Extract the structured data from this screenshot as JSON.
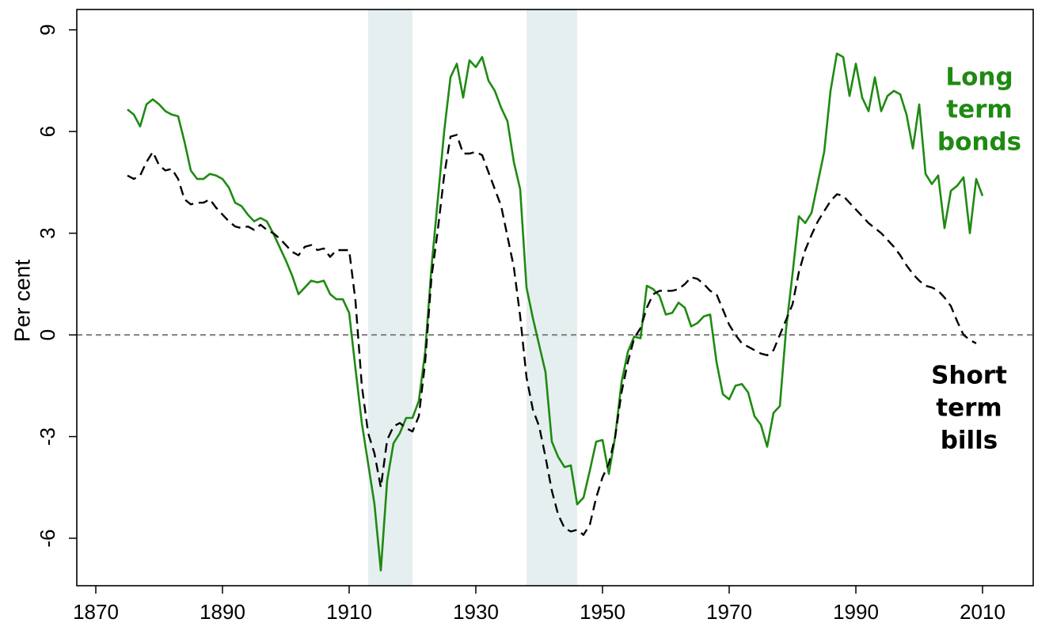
{
  "chart_data": {
    "type": "line",
    "title": "",
    "xlabel": "",
    "ylabel": "Per cent",
    "xlim": [
      1867,
      2018
    ],
    "ylim": [
      -7.4,
      9.6
    ],
    "xticks": [
      1870,
      1890,
      1910,
      1930,
      1950,
      1970,
      1990,
      2010
    ],
    "yticks": [
      -6,
      -3,
      0,
      3,
      6,
      9
    ],
    "ytick_labels": [
      "-6",
      "-3",
      "0",
      "3",
      "6",
      "9"
    ],
    "reference_line": {
      "y": 0,
      "color": "#8a8a8a",
      "style": "dashed"
    },
    "shaded_periods": [
      {
        "x": [
          1913,
          1920
        ],
        "color": "#e6eff0"
      },
      {
        "x": [
          1938,
          1946
        ],
        "color": "#e6eff0"
      }
    ],
    "series": [
      {
        "name_lines": [
          "Long",
          "term",
          "bonds"
        ],
        "color": "#1f8a12",
        "style": "solid",
        "x": [
          1875,
          1876,
          1877,
          1878,
          1879,
          1880,
          1881,
          1882,
          1883,
          1884,
          1885,
          1886,
          1887,
          1888,
          1889,
          1890,
          1891,
          1892,
          1893,
          1894,
          1895,
          1896,
          1897,
          1898,
          1899,
          1900,
          1901,
          1902,
          1903,
          1904,
          1905,
          1906,
          1907,
          1908,
          1909,
          1910,
          1911,
          1912,
          1913,
          1914,
          1915,
          1916,
          1917,
          1918,
          1919,
          1920,
          1921,
          1922,
          1923,
          1924,
          1925,
          1926,
          1927,
          1928,
          1929,
          1930,
          1931,
          1932,
          1933,
          1934,
          1935,
          1936,
          1937,
          1938,
          1939,
          1940,
          1941,
          1942,
          1943,
          1944,
          1945,
          1946,
          1947,
          1948,
          1949,
          1950,
          1951,
          1952,
          1953,
          1954,
          1955,
          1956,
          1957,
          1958,
          1959,
          1960,
          1961,
          1962,
          1963,
          1964,
          1965,
          1966,
          1967,
          1968,
          1969,
          1970,
          1971,
          1972,
          1973,
          1974,
          1975,
          1976,
          1977,
          1978,
          1979,
          1980,
          1981,
          1982,
          1983,
          1984,
          1985,
          1986,
          1987,
          1988,
          1989,
          1990,
          1991,
          1992,
          1993,
          1994,
          1995,
          1996,
          1997,
          1998,
          1999,
          2000,
          2001,
          2002,
          2003,
          2004,
          2005,
          2006,
          2007,
          2008,
          2009,
          2010
        ],
        "y": [
          6.65,
          6.5,
          6.15,
          6.8,
          6.95,
          6.8,
          6.6,
          6.5,
          6.45,
          5.7,
          4.85,
          4.6,
          4.6,
          4.75,
          4.7,
          4.6,
          4.35,
          3.9,
          3.8,
          3.55,
          3.35,
          3.45,
          3.35,
          3.0,
          2.6,
          2.2,
          1.75,
          1.2,
          1.4,
          1.6,
          1.55,
          1.6,
          1.2,
          1.05,
          1.05,
          0.65,
          -1.0,
          -2.6,
          -3.8,
          -5.0,
          -6.95,
          -4.3,
          -3.2,
          -2.9,
          -2.45,
          -2.45,
          -1.95,
          -0.5,
          2.0,
          4.0,
          6.0,
          7.6,
          8.0,
          7.0,
          8.1,
          7.9,
          8.2,
          7.5,
          7.2,
          6.7,
          6.3,
          5.1,
          4.3,
          1.4,
          0.5,
          -0.3,
          -1.1,
          -3.15,
          -3.6,
          -3.9,
          -3.85,
          -5.0,
          -4.8,
          -4.0,
          -3.15,
          -3.1,
          -4.1,
          -3.0,
          -1.4,
          -0.5,
          -0.05,
          -0.1,
          1.45,
          1.35,
          1.15,
          0.6,
          0.65,
          0.95,
          0.8,
          0.25,
          0.35,
          0.55,
          0.6,
          -0.8,
          -1.75,
          -1.9,
          -1.5,
          -1.45,
          -1.7,
          -2.4,
          -2.65,
          -3.3,
          -2.3,
          -2.1,
          0.2,
          1.8,
          3.5,
          3.3,
          3.6,
          4.5,
          5.4,
          7.2,
          8.3,
          8.2,
          7.05,
          8.0,
          7.0,
          6.6,
          7.6,
          6.6,
          7.05,
          7.2,
          7.1,
          6.5,
          5.5,
          6.8,
          4.75,
          4.45,
          4.7,
          3.15,
          4.25,
          4.4,
          4.65,
          3.0,
          4.6,
          4.1
        ]
      },
      {
        "name_lines": [
          "Short",
          "term",
          "bills"
        ],
        "color": "#000000",
        "style": "dashed",
        "x": [
          1875,
          1876,
          1877,
          1878,
          1879,
          1880,
          1881,
          1882,
          1883,
          1884,
          1885,
          1886,
          1887,
          1888,
          1889,
          1890,
          1891,
          1892,
          1893,
          1894,
          1895,
          1896,
          1897,
          1898,
          1899,
          1900,
          1901,
          1902,
          1903,
          1904,
          1905,
          1906,
          1907,
          1908,
          1909,
          1910,
          1911,
          1912,
          1913,
          1914,
          1915,
          1916,
          1917,
          1918,
          1919,
          1920,
          1921,
          1922,
          1923,
          1924,
          1925,
          1926,
          1927,
          1928,
          1929,
          1930,
          1931,
          1932,
          1933,
          1934,
          1935,
          1936,
          1937,
          1938,
          1939,
          1940,
          1941,
          1942,
          1943,
          1944,
          1945,
          1946,
          1947,
          1948,
          1949,
          1950,
          1951,
          1952,
          1953,
          1954,
          1955,
          1956,
          1957,
          1958,
          1959,
          1960,
          1961,
          1962,
          1963,
          1964,
          1965,
          1966,
          1967,
          1968,
          1969,
          1970,
          1971,
          1972,
          1973,
          1974,
          1975,
          1976,
          1977,
          1978,
          1979,
          1980,
          1981,
          1982,
          1983,
          1984,
          1985,
          1986,
          1987,
          1988,
          1989,
          1990,
          1991,
          1992,
          1993,
          1994,
          1995,
          1996,
          1997,
          1998,
          1999,
          2000,
          2001,
          2002,
          2003,
          2004,
          2005,
          2006,
          2007,
          2008,
          2009
        ],
        "y": [
          4.7,
          4.6,
          4.7,
          5.1,
          5.4,
          5.0,
          4.85,
          4.9,
          4.6,
          4.0,
          3.85,
          3.9,
          3.9,
          4.0,
          3.75,
          3.55,
          3.35,
          3.2,
          3.15,
          3.2,
          3.1,
          3.25,
          3.1,
          3.0,
          2.85,
          2.65,
          2.45,
          2.35,
          2.6,
          2.65,
          2.5,
          2.55,
          2.3,
          2.5,
          2.5,
          2.5,
          1.0,
          -1.5,
          -2.9,
          -3.5,
          -4.5,
          -3.1,
          -2.7,
          -2.6,
          -2.75,
          -2.85,
          -2.4,
          -0.8,
          1.7,
          3.1,
          4.7,
          5.85,
          5.9,
          5.35,
          5.35,
          5.4,
          5.3,
          4.8,
          4.3,
          3.8,
          2.9,
          2.0,
          0.55,
          -1.25,
          -2.2,
          -2.7,
          -3.6,
          -4.6,
          -5.3,
          -5.7,
          -5.8,
          -5.75,
          -5.9,
          -5.6,
          -4.8,
          -4.2,
          -3.8,
          -3.0,
          -1.7,
          -0.8,
          -0.1,
          0.2,
          0.8,
          1.2,
          1.3,
          1.3,
          1.3,
          1.35,
          1.5,
          1.7,
          1.65,
          1.5,
          1.3,
          1.2,
          0.75,
          0.3,
          0.0,
          -0.25,
          -0.35,
          -0.45,
          -0.55,
          -0.6,
          -0.45,
          0.0,
          0.45,
          0.9,
          1.85,
          2.5,
          2.95,
          3.35,
          3.65,
          3.95,
          4.15,
          4.1,
          3.9,
          3.7,
          3.5,
          3.3,
          3.15,
          3.0,
          2.8,
          2.6,
          2.35,
          2.05,
          1.8,
          1.6,
          1.45,
          1.4,
          1.3,
          1.1,
          0.85,
          0.4,
          0.0,
          -0.15,
          -0.25
        ]
      }
    ]
  }
}
